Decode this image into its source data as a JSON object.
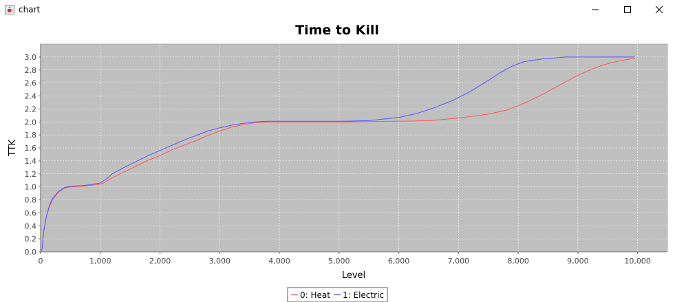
{
  "window": {
    "title": "chart",
    "icon": "java-cup-icon",
    "controls": [
      "minimize-icon",
      "maximize-icon",
      "close-icon"
    ]
  },
  "chart_data": {
    "type": "line",
    "title": "Time to Kill",
    "xlabel": "Level",
    "ylabel": "TTK",
    "xlim": [
      0,
      10500
    ],
    "ylim": [
      0,
      3.2
    ],
    "xticks": [
      0,
      1000,
      2000,
      3000,
      4000,
      5000,
      6000,
      7000,
      8000,
      9000,
      10000
    ],
    "xtick_labels": [
      "0",
      "1,000",
      "2,000",
      "3,000",
      "4,000",
      "5,000",
      "6,000",
      "7,000",
      "8,000",
      "9,000",
      "10,000"
    ],
    "yticks": [
      0.0,
      0.2,
      0.4,
      0.6,
      0.8,
      1.0,
      1.2,
      1.4,
      1.6,
      1.8,
      2.0,
      2.2,
      2.4,
      2.6,
      2.8,
      3.0
    ],
    "ytick_labels": [
      "0.0",
      "0.2",
      "0.4",
      "0.6",
      "0.8",
      "1.0",
      "1.2",
      "1.4",
      "1.6",
      "1.8",
      "2.0",
      "2.2",
      "2.4",
      "2.6",
      "2.8",
      "3.0"
    ],
    "grid": true,
    "legend_position": "bottom",
    "plot_background": "#c0c0c0",
    "series": [
      {
        "name": "0: Heat",
        "color": "#ff5555",
        "x": [
          0,
          25,
          50,
          100,
          150,
          200,
          300,
          400,
          500,
          700,
          800,
          1000,
          1100,
          1200,
          1400,
          1600,
          1800,
          2000,
          2200,
          2400,
          2600,
          2800,
          3000,
          3200,
          3400,
          3600,
          3800,
          4000,
          5000,
          6000,
          6500,
          7000,
          7500,
          7800,
          8000,
          8200,
          8400,
          8600,
          8800,
          9000,
          9200,
          9400,
          9600,
          9800,
          9950
        ],
        "y": [
          0.0,
          0.05,
          0.3,
          0.55,
          0.7,
          0.8,
          0.92,
          0.98,
          1.0,
          1.01,
          1.02,
          1.04,
          1.08,
          1.14,
          1.23,
          1.32,
          1.41,
          1.48,
          1.57,
          1.64,
          1.71,
          1.79,
          1.86,
          1.92,
          1.96,
          1.99,
          2.0,
          2.0,
          2.0,
          2.01,
          2.02,
          2.06,
          2.12,
          2.18,
          2.25,
          2.33,
          2.42,
          2.52,
          2.62,
          2.72,
          2.8,
          2.87,
          2.92,
          2.96,
          2.98
        ]
      },
      {
        "name": "1: Electric",
        "color": "#5555ff",
        "x": [
          0,
          25,
          50,
          100,
          150,
          200,
          300,
          400,
          500,
          700,
          800,
          1000,
          1100,
          1200,
          1400,
          1600,
          1800,
          2000,
          2200,
          2400,
          2600,
          2800,
          3000,
          3200,
          3400,
          3600,
          3800,
          4000,
          5000,
          5500,
          6000,
          6300,
          6600,
          6900,
          7200,
          7500,
          7700,
          7900,
          8100,
          8400,
          8800,
          9200,
          9600,
          9950
        ],
        "y": [
          0.0,
          0.05,
          0.3,
          0.56,
          0.72,
          0.82,
          0.93,
          0.99,
          1.01,
          1.02,
          1.03,
          1.06,
          1.12,
          1.2,
          1.3,
          1.39,
          1.48,
          1.56,
          1.64,
          1.72,
          1.79,
          1.86,
          1.91,
          1.95,
          1.98,
          2.0,
          2.01,
          2.01,
          2.01,
          2.02,
          2.07,
          2.13,
          2.22,
          2.33,
          2.47,
          2.64,
          2.76,
          2.86,
          2.93,
          2.97,
          3.0,
          3.0,
          3.0,
          3.0
        ]
      }
    ]
  }
}
